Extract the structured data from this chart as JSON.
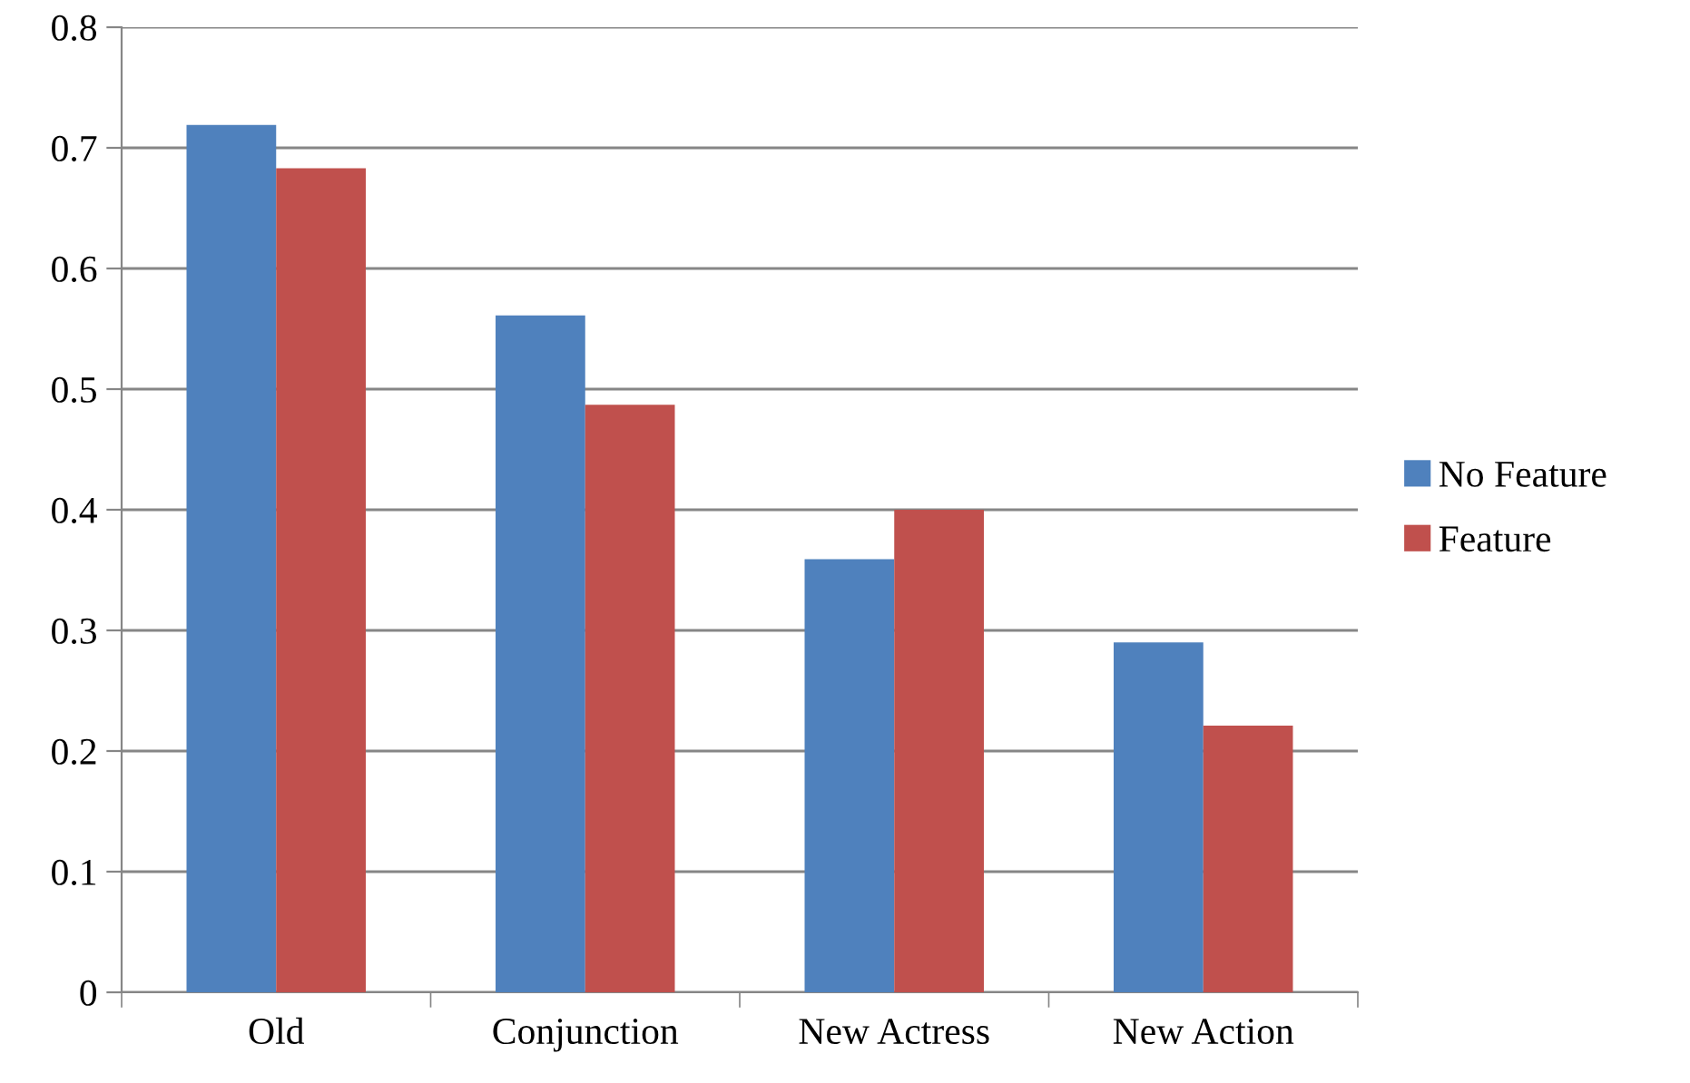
{
  "chart_data": {
    "type": "bar",
    "categories": [
      "Old",
      "Conjunction",
      "New Actress",
      "New Action"
    ],
    "series": [
      {
        "name": "No Feature",
        "color": "#4f81bd",
        "values": [
          0.719,
          0.561,
          0.359,
          0.29
        ]
      },
      {
        "name": "Feature",
        "color": "#c0504d",
        "values": [
          0.683,
          0.487,
          0.4,
          0.221
        ]
      }
    ],
    "ylim": [
      0,
      0.8
    ],
    "yticks": [
      {
        "value": 0,
        "label": "0"
      },
      0.1,
      0.2,
      0.3,
      0.4,
      0.5,
      0.6,
      0.7,
      0.8
    ],
    "grid": "y",
    "legend": "right"
  }
}
